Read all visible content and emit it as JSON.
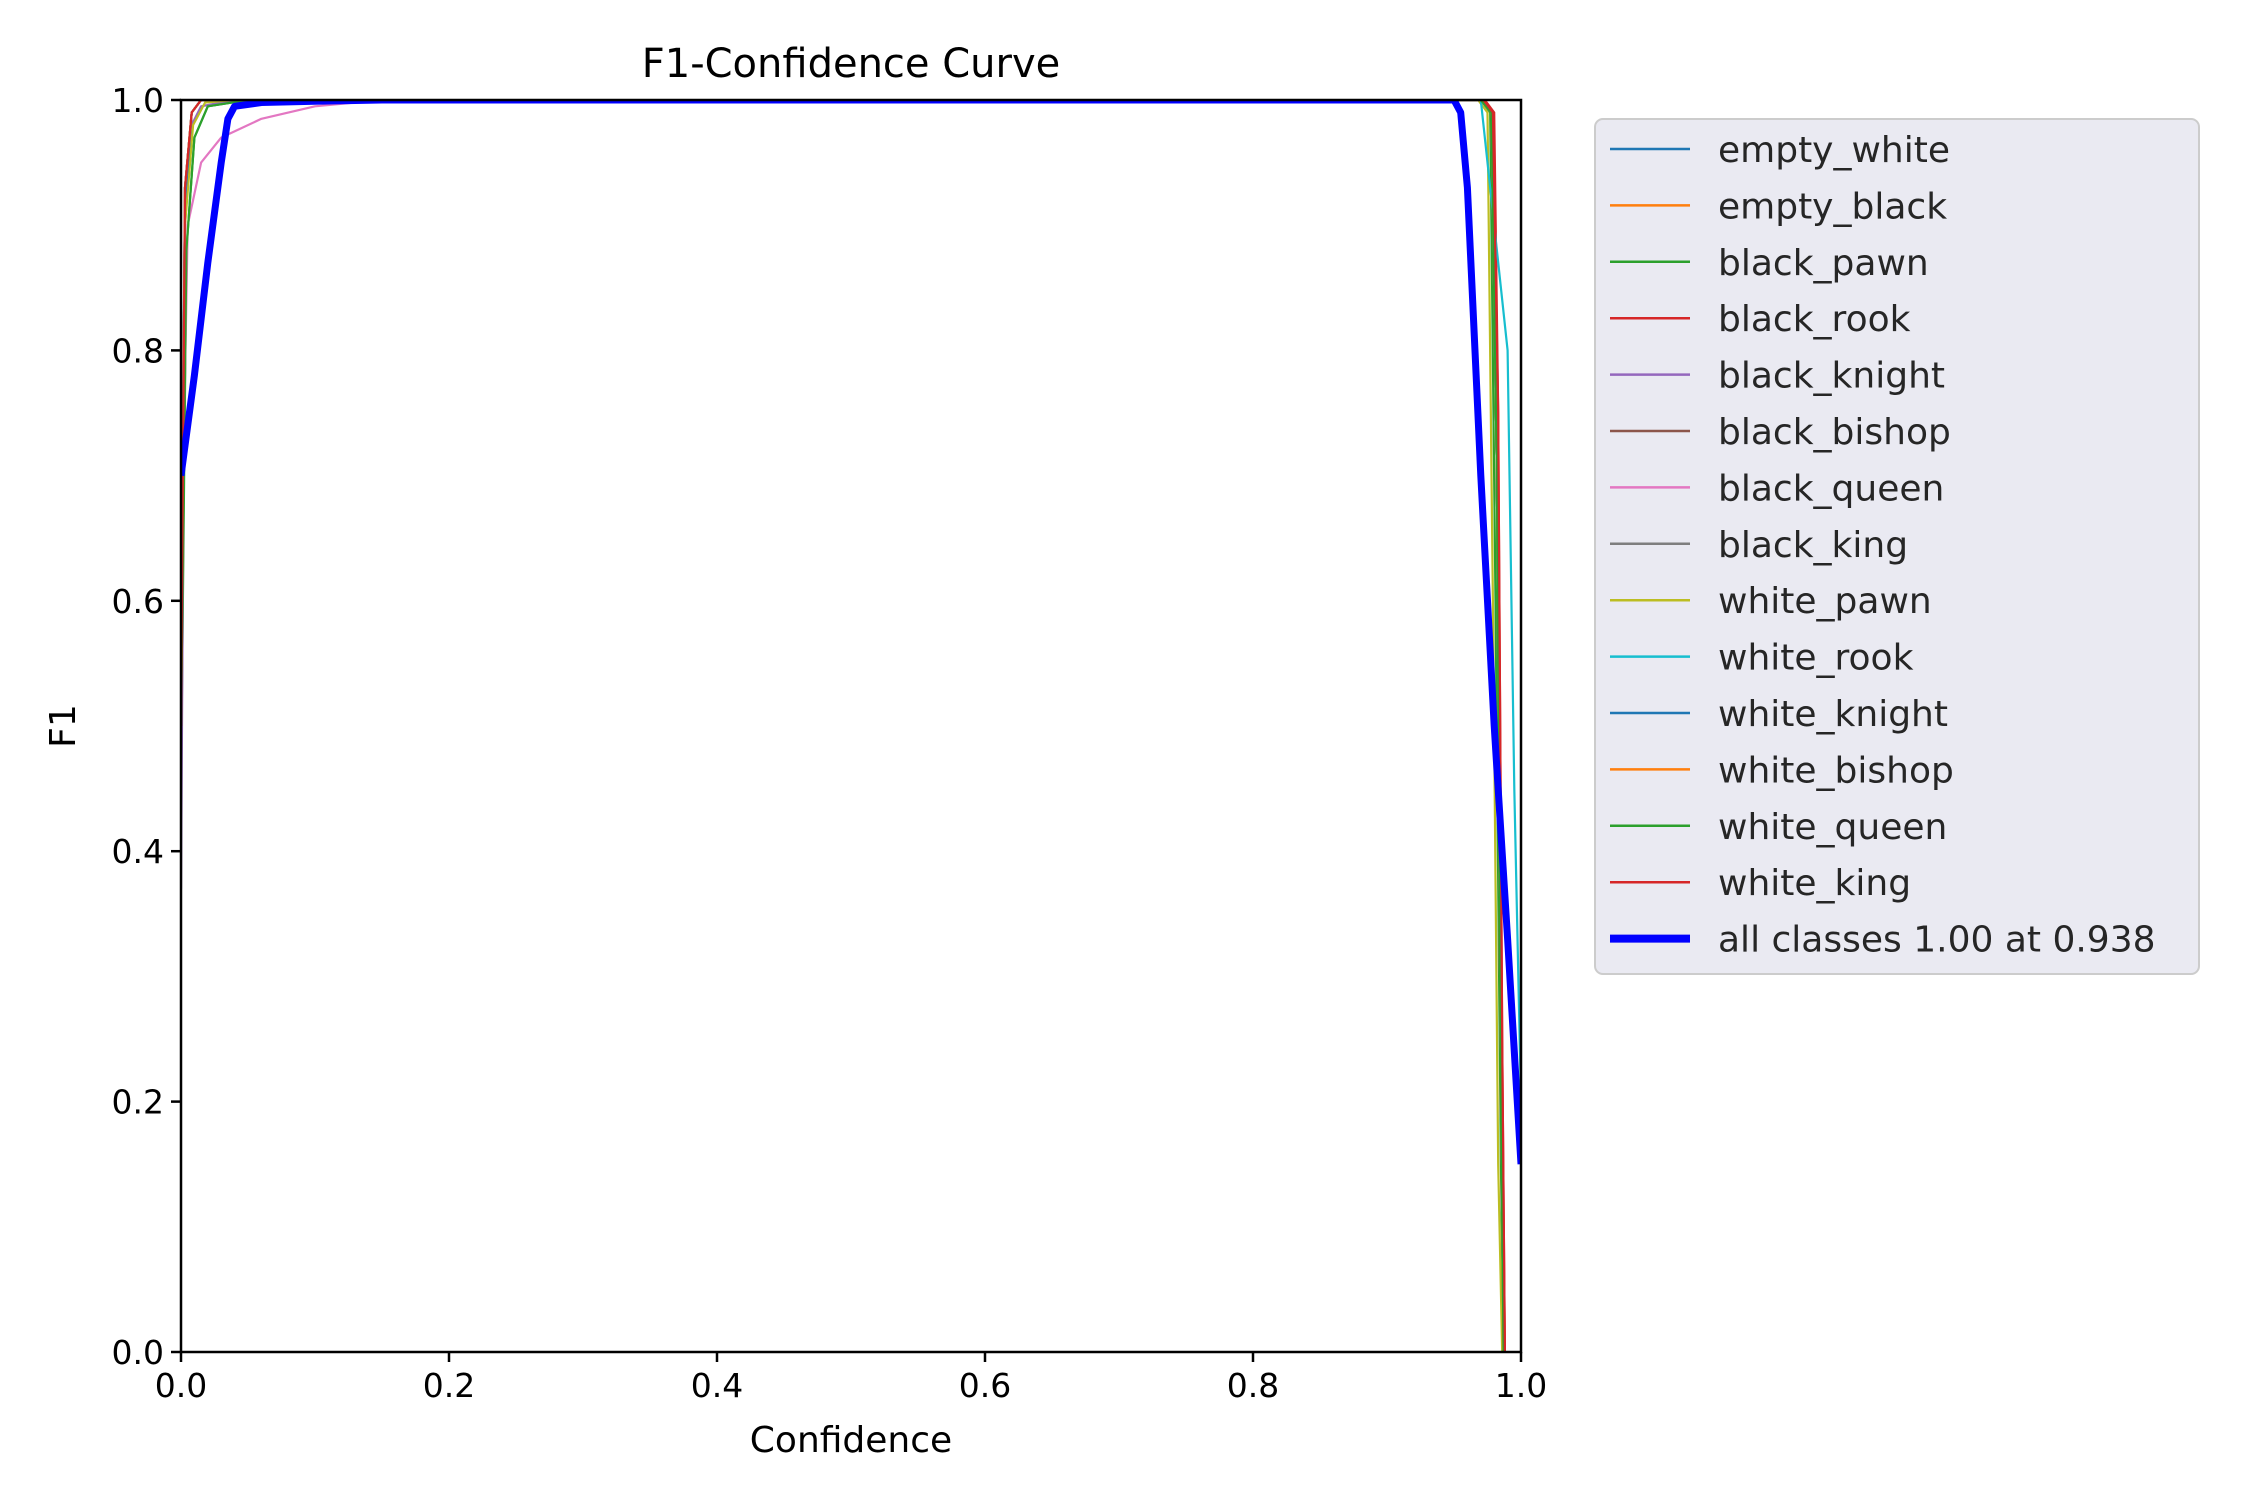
{
  "chart_data": {
    "type": "line",
    "title": "F1-Confidence Curve",
    "xlabel": "Confidence",
    "ylabel": "F1",
    "xlim": [
      0,
      1
    ],
    "ylim": [
      0,
      1
    ],
    "xticks": [
      "0.0",
      "0.2",
      "0.4",
      "0.6",
      "0.8",
      "1.0"
    ],
    "yticks": [
      "0.0",
      "0.2",
      "0.4",
      "0.6",
      "0.8",
      "1.0"
    ],
    "grid": false,
    "legend_position": "outside-right-top",
    "series": [
      {
        "name": "empty_white",
        "color": "#1f77b4",
        "x": [
          0,
          0.003,
          0.008,
          0.015,
          0.04,
          0.97,
          0.978,
          0.982,
          0.985,
          0.987
        ],
        "y": [
          0.5,
          0.93,
          0.99,
          1.0,
          1.0,
          1.0,
          0.99,
          0.7,
          0.2,
          0.0
        ]
      },
      {
        "name": "empty_black",
        "color": "#ff7f0e",
        "x": [
          0,
          0.003,
          0.008,
          0.015,
          0.04,
          0.97,
          0.978,
          0.982,
          0.986,
          0.988
        ],
        "y": [
          0.5,
          0.92,
          0.99,
          1.0,
          1.0,
          1.0,
          0.99,
          0.7,
          0.2,
          0.0
        ]
      },
      {
        "name": "black_pawn",
        "color": "#2ca02c",
        "x": [
          0,
          0.004,
          0.01,
          0.02,
          0.05,
          0.97,
          0.977,
          0.981,
          0.985,
          0.987
        ],
        "y": [
          0.45,
          0.88,
          0.97,
          0.995,
          1.0,
          1.0,
          0.99,
          0.6,
          0.15,
          0.0
        ]
      },
      {
        "name": "black_rook",
        "color": "#d62728",
        "x": [
          0,
          0.003,
          0.008,
          0.015,
          0.04,
          0.973,
          0.98,
          0.983,
          0.986,
          0.988
        ],
        "y": [
          0.5,
          0.93,
          0.99,
          1.0,
          1.0,
          1.0,
          0.99,
          0.75,
          0.25,
          0.0
        ]
      },
      {
        "name": "black_knight",
        "color": "#9467bd",
        "x": [
          0,
          0.003,
          0.008,
          0.015,
          0.04,
          0.97,
          0.978,
          0.982,
          0.985,
          0.987
        ],
        "y": [
          0.37,
          0.9,
          0.98,
          0.995,
          1.0,
          1.0,
          0.99,
          0.7,
          0.2,
          0.0
        ]
      },
      {
        "name": "black_bishop",
        "color": "#8c564b",
        "x": [
          0,
          0.003,
          0.008,
          0.015,
          0.04,
          0.97,
          0.978,
          0.982,
          0.985,
          0.987
        ],
        "y": [
          0.5,
          0.92,
          0.99,
          1.0,
          1.0,
          1.0,
          0.99,
          0.7,
          0.2,
          0.0
        ]
      },
      {
        "name": "black_queen",
        "color": "#e377c2",
        "x": [
          0,
          0.005,
          0.015,
          0.03,
          0.06,
          0.1,
          0.15,
          0.97,
          0.978,
          0.982,
          0.985,
          0.987
        ],
        "y": [
          0.6,
          0.9,
          0.95,
          0.97,
          0.985,
          0.995,
          1.0,
          1.0,
          0.99,
          0.7,
          0.2,
          0.0
        ]
      },
      {
        "name": "black_king",
        "color": "#7f7f7f",
        "x": [
          0,
          0.003,
          0.008,
          0.015,
          0.04,
          0.97,
          0.978,
          0.982,
          0.985,
          0.987
        ],
        "y": [
          0.55,
          0.93,
          0.99,
          1.0,
          1.0,
          1.0,
          0.99,
          0.7,
          0.2,
          0.0
        ]
      },
      {
        "name": "white_pawn",
        "color": "#bcbd22",
        "x": [
          0,
          0.003,
          0.009,
          0.018,
          0.04,
          0.968,
          0.975,
          0.979,
          0.983,
          0.986
        ],
        "y": [
          0.5,
          0.9,
          0.98,
          0.998,
          1.0,
          1.0,
          0.99,
          0.6,
          0.15,
          0.0
        ]
      },
      {
        "name": "white_rook",
        "color": "#17becf",
        "x": [
          0,
          0.003,
          0.008,
          0.015,
          0.04,
          0.97,
          0.99,
          0.995,
          1.0
        ],
        "y": [
          0.55,
          0.93,
          0.99,
          1.0,
          1.0,
          1.0,
          0.8,
          0.45,
          0.2
        ]
      },
      {
        "name": "white_knight",
        "color": "#1f77b4",
        "x": [
          0,
          0.003,
          0.008,
          0.015,
          0.04,
          0.97,
          0.978,
          0.982,
          0.985,
          0.987
        ],
        "y": [
          0.5,
          0.92,
          0.99,
          1.0,
          1.0,
          1.0,
          0.99,
          0.7,
          0.2,
          0.0
        ]
      },
      {
        "name": "white_bishop",
        "color": "#ff7f0e",
        "x": [
          0,
          0.003,
          0.008,
          0.015,
          0.04,
          0.97,
          0.978,
          0.982,
          0.985,
          0.987
        ],
        "y": [
          0.5,
          0.93,
          0.99,
          1.0,
          1.0,
          1.0,
          0.99,
          0.7,
          0.2,
          0.0
        ]
      },
      {
        "name": "white_queen",
        "color": "#2ca02c",
        "x": [
          0,
          0.004,
          0.01,
          0.02,
          0.05,
          0.97,
          0.978,
          0.982,
          0.985,
          0.987
        ],
        "y": [
          0.5,
          0.88,
          0.97,
          0.995,
          1.0,
          1.0,
          0.99,
          0.7,
          0.2,
          0.0
        ]
      },
      {
        "name": "white_king",
        "color": "#d62728",
        "x": [
          0,
          0.003,
          0.008,
          0.015,
          0.04,
          0.972,
          0.979,
          0.983,
          0.986,
          0.988
        ],
        "y": [
          0.5,
          0.93,
          0.99,
          1.0,
          1.0,
          1.0,
          0.99,
          0.75,
          0.25,
          0.0
        ]
      },
      {
        "name": "all classes 1.00 at 0.938",
        "color": "#0000ff",
        "bold": true,
        "x": [
          0,
          0.01,
          0.02,
          0.03,
          0.035,
          0.04,
          0.06,
          0.1,
          0.15,
          0.3,
          0.5,
          0.7,
          0.9,
          0.95,
          0.955,
          0.96,
          0.97,
          0.98,
          0.99,
          1.0
        ],
        "y": [
          0.7,
          0.78,
          0.87,
          0.95,
          0.985,
          0.995,
          0.998,
          0.999,
          1.0,
          1.0,
          1.0,
          1.0,
          1.0,
          1.0,
          0.99,
          0.93,
          0.7,
          0.5,
          0.33,
          0.15
        ]
      }
    ]
  }
}
